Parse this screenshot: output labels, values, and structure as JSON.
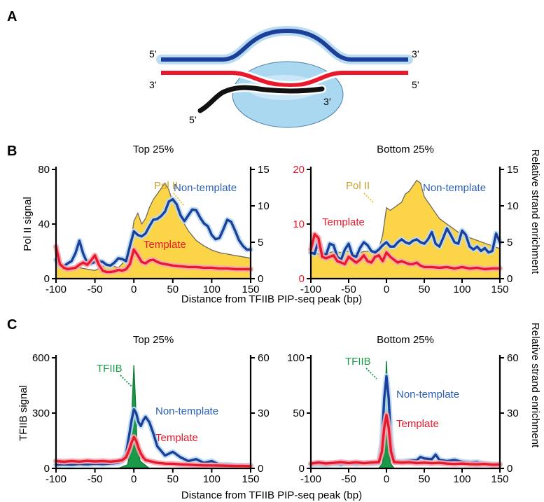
{
  "panel_letters": {
    "a": "A",
    "b": "B",
    "c": "C"
  },
  "schematic": {
    "top_left": "5’",
    "top_right": "3’",
    "bottom_left": "3’",
    "bottom_right": "5’",
    "rna_5": "5’",
    "rna_3": "3’"
  },
  "colors": {
    "non_template": "#1c3f9a",
    "template": "#e8192c",
    "pol2": "#fbd448",
    "tfiib": "#1a9a48",
    "halo": "#b9dcf2",
    "bubble": "#a9d8f0",
    "rna": "#111111"
  },
  "right_label": "Relative strand enrichment",
  "xlabel": "Distance from TFIIB PIP-seq peak (bp)",
  "chart_data": [
    {
      "type": "area",
      "panel": "B",
      "title": "Top 25%",
      "ylabel": "Pol II signal",
      "xlim": [
        -100,
        150
      ],
      "xticks": [
        "-100",
        "-50",
        "0",
        "50",
        "100",
        "150"
      ],
      "ylim_left": [
        0,
        80
      ],
      "yticks_left": [
        "0",
        "40",
        "80"
      ],
      "ylim_right": [
        0,
        15
      ],
      "yticks_right": [
        "0",
        "5",
        "10",
        "15"
      ],
      "series": [
        {
          "name": "Pol II",
          "axis": "left",
          "x": [
            -100,
            -90,
            -80,
            -70,
            -60,
            -50,
            -40,
            -30,
            -20,
            -10,
            -5,
            0,
            5,
            10,
            15,
            20,
            25,
            30,
            35,
            40,
            45,
            50,
            60,
            70,
            80,
            90,
            100,
            110,
            120,
            130,
            140,
            150
          ],
          "y": [
            10,
            8,
            7,
            8,
            7,
            6,
            9,
            10,
            8,
            14,
            22,
            42,
            48,
            40,
            44,
            52,
            58,
            62,
            66,
            70,
            65,
            56,
            45,
            35,
            28,
            24,
            21,
            19,
            18,
            17,
            16,
            15
          ]
        },
        {
          "name": "Non-template",
          "axis": "right",
          "x": [
            -100,
            -95,
            -90,
            -85,
            -80,
            -75,
            -70,
            -65,
            -60,
            -55,
            -50,
            -45,
            -40,
            -35,
            -30,
            -25,
            -20,
            -15,
            -10,
            -5,
            0,
            5,
            10,
            15,
            20,
            25,
            30,
            35,
            40,
            45,
            50,
            55,
            60,
            65,
            70,
            75,
            80,
            85,
            90,
            95,
            100,
            105,
            110,
            115,
            120,
            125,
            130,
            135,
            140,
            145,
            150
          ],
          "y": [
            2.6,
            1.8,
            1.7,
            2.1,
            2.4,
            3.5,
            5.2,
            3.4,
            2.2,
            2.1,
            2.3,
            2.4,
            2.3,
            1.9,
            1.8,
            2.2,
            2.8,
            2.7,
            2.4,
            4.5,
            6.5,
            6.0,
            5.8,
            6.2,
            7.2,
            8.1,
            8.2,
            8.6,
            9.2,
            10.6,
            10.9,
            10.2,
            8.7,
            7.9,
            8.7,
            9.5,
            9.4,
            8.4,
            7.6,
            7.2,
            6.0,
            5.4,
            5.6,
            6.8,
            8.1,
            7.8,
            6.6,
            5.3,
            4.5,
            4.0,
            4.0
          ]
        },
        {
          "name": "Template",
          "axis": "right",
          "x": [
            -100,
            -95,
            -90,
            -85,
            -80,
            -75,
            -70,
            -65,
            -60,
            -55,
            -50,
            -45,
            -40,
            -35,
            -30,
            -25,
            -20,
            -15,
            -10,
            -5,
            0,
            5,
            10,
            15,
            20,
            25,
            30,
            35,
            40,
            45,
            50,
            60,
            70,
            80,
            90,
            100,
            110,
            120,
            130,
            140,
            150
          ],
          "y": [
            4.4,
            2.0,
            1.5,
            1.3,
            1.4,
            1.5,
            1.9,
            2.2,
            1.9,
            2.5,
            3.2,
            1.9,
            1.1,
            0.9,
            0.9,
            1.0,
            1.2,
            1.1,
            1.3,
            2.0,
            4.0,
            3.2,
            2.3,
            2.1,
            2.5,
            2.6,
            2.3,
            2.1,
            2.0,
            1.9,
            1.8,
            1.7,
            1.6,
            1.6,
            1.5,
            1.5,
            1.4,
            1.4,
            1.3,
            1.3,
            1.3
          ]
        }
      ],
      "annotations": [
        {
          "text": "Pol II",
          "kind": "pol2"
        },
        {
          "text": "Non-template",
          "kind": "non_template"
        },
        {
          "text": "Template",
          "kind": "template"
        }
      ]
    },
    {
      "type": "area",
      "panel": "B",
      "title": "Bottom 25%",
      "ylabel": "",
      "xlim": [
        -100,
        150
      ],
      "xticks": [
        "-100",
        "-50",
        "0",
        "50",
        "100",
        "150"
      ],
      "ylim_left": [
        0,
        20
      ],
      "yticks_left": [
        "0",
        "10",
        "20"
      ],
      "ylim_right": [
        0,
        15
      ],
      "yticks_right": [
        "0",
        "5",
        "10",
        "15"
      ],
      "series": [
        {
          "name": "Pol II",
          "axis": "left",
          "x": [
            -100,
            -90,
            -80,
            -70,
            -60,
            -50,
            -40,
            -30,
            -20,
            -10,
            -5,
            0,
            5,
            10,
            20,
            25,
            30,
            35,
            40,
            45,
            50,
            60,
            70,
            80,
            90,
            100,
            110,
            120,
            130,
            140,
            150
          ],
          "y": [
            5,
            4.5,
            4.5,
            5,
            4.8,
            5,
            4.5,
            5,
            5,
            5.5,
            8,
            13,
            12.5,
            13,
            14,
            15.5,
            16,
            17,
            18,
            17.5,
            15,
            13,
            11,
            10,
            9,
            8,
            7.5,
            7,
            6.5,
            6,
            5.5
          ]
        },
        {
          "name": "Non-template",
          "axis": "right",
          "x": [
            -100,
            -95,
            -90,
            -85,
            -80,
            -75,
            -70,
            -65,
            -60,
            -55,
            -50,
            -45,
            -40,
            -35,
            -30,
            -25,
            -20,
            -15,
            -10,
            -5,
            0,
            5,
            10,
            15,
            20,
            25,
            30,
            35,
            40,
            45,
            50,
            55,
            60,
            65,
            70,
            75,
            80,
            85,
            90,
            95,
            100,
            105,
            110,
            115,
            120,
            125,
            130,
            135,
            140,
            145,
            150
          ],
          "y": [
            3.6,
            3.4,
            5.2,
            3.6,
            3.2,
            4.8,
            4.6,
            3.0,
            2.6,
            4.0,
            4.8,
            3.2,
            3.0,
            4.2,
            5.0,
            4.6,
            3.8,
            3.6,
            4.0,
            4.6,
            5.0,
            4.4,
            4.4,
            5.0,
            5.4,
            5.0,
            4.8,
            5.2,
            5.4,
            5.0,
            4.8,
            5.4,
            6.4,
            4.8,
            4.4,
            5.6,
            6.9,
            6.0,
            5.0,
            4.8,
            6.6,
            6.0,
            4.4,
            4.0,
            4.4,
            3.8,
            4.2,
            3.6,
            3.8,
            6.2,
            5.0
          ]
        },
        {
          "name": "Template",
          "axis": "right",
          "x": [
            -100,
            -95,
            -90,
            -85,
            -80,
            -75,
            -70,
            -65,
            -60,
            -55,
            -50,
            -45,
            -40,
            -35,
            -30,
            -25,
            -20,
            -15,
            -10,
            -5,
            0,
            5,
            10,
            15,
            20,
            25,
            30,
            35,
            40,
            45,
            50,
            60,
            70,
            80,
            90,
            100,
            110,
            120,
            130,
            140,
            150
          ],
          "y": [
            4.0,
            6.1,
            5.6,
            3.0,
            2.8,
            3.0,
            3.2,
            2.4,
            2.2,
            2.0,
            3.0,
            2.6,
            2.2,
            2.6,
            3.2,
            2.4,
            2.2,
            3.0,
            3.2,
            2.4,
            3.6,
            3.0,
            2.6,
            2.2,
            2.4,
            2.2,
            2.0,
            2.0,
            2.2,
            1.8,
            1.6,
            1.6,
            1.5,
            1.6,
            1.4,
            1.6,
            1.4,
            1.5,
            1.3,
            1.4,
            1.4
          ]
        }
      ],
      "annotations": [
        {
          "text": "Pol II",
          "kind": "pol2"
        },
        {
          "text": "Non-template",
          "kind": "non_template"
        },
        {
          "text": "Template",
          "kind": "template"
        }
      ]
    },
    {
      "type": "area",
      "panel": "C",
      "title": "Top 25%",
      "ylabel": "TFIIB signal",
      "xlim": [
        -100,
        150
      ],
      "xticks": [
        "-100",
        "-50",
        "0",
        "50",
        "100",
        "150"
      ],
      "ylim_left": [
        0,
        600
      ],
      "yticks_left": [
        "0",
        "300",
        "600"
      ],
      "ylim_right": [
        0,
        60
      ],
      "yticks_right": [
        "0",
        "30",
        "60"
      ],
      "series": [
        {
          "name": "TFIIB",
          "axis": "left",
          "x": [
            -100,
            -20,
            -8,
            -4,
            -2,
            0,
            2,
            4,
            8,
            20,
            150
          ],
          "y": [
            0,
            0,
            20,
            120,
            360,
            560,
            380,
            150,
            40,
            0,
            0
          ]
        },
        {
          "name": "Non-template",
          "axis": "right",
          "x": [
            -100,
            -90,
            -80,
            -70,
            -60,
            -50,
            -40,
            -30,
            -20,
            -15,
            -10,
            -6,
            -3,
            0,
            3,
            6,
            9,
            12,
            15,
            20,
            25,
            30,
            40,
            50,
            60,
            70,
            80,
            90,
            100,
            110,
            120,
            130,
            140,
            150
          ],
          "y": [
            2,
            2.2,
            2,
            2.4,
            2.2,
            2.5,
            2.3,
            2.6,
            3,
            4,
            8,
            18,
            26,
            32,
            30,
            25,
            23,
            26,
            28,
            25,
            19,
            12,
            7,
            9,
            6,
            4,
            5,
            3,
            4,
            2,
            2,
            1.6,
            1.5,
            1.5
          ]
        },
        {
          "name": "Template",
          "axis": "right",
          "x": [
            -100,
            -90,
            -80,
            -70,
            -60,
            -50,
            -40,
            -30,
            -20,
            -15,
            -10,
            -6,
            -3,
            0,
            3,
            6,
            9,
            12,
            15,
            20,
            25,
            30,
            40,
            50,
            60,
            70,
            80,
            90,
            100,
            110,
            120,
            130,
            140,
            150
          ],
          "y": [
            4,
            3.6,
            4,
            3.7,
            4.1,
            3.8,
            4.0,
            3.7,
            4.1,
            4.5,
            6,
            10,
            14,
            17,
            15,
            11,
            8,
            6,
            4.5,
            4,
            3.5,
            3,
            2.6,
            2.5,
            2.2,
            2,
            1.8,
            1.6,
            1.6,
            1.5,
            1.4,
            1.3,
            1.3,
            1.2
          ]
        }
      ],
      "annotations": [
        {
          "text": "TFIIB",
          "kind": "tfiib"
        },
        {
          "text": "Non-template",
          "kind": "non_template"
        },
        {
          "text": "Template",
          "kind": "template"
        }
      ]
    },
    {
      "type": "area",
      "panel": "C",
      "title": "Bottom 25%",
      "ylabel": "",
      "xlim": [
        -100,
        150
      ],
      "xticks": [
        "-100",
        "-50",
        "0",
        "50",
        "100",
        "150"
      ],
      "ylim_left": [
        0,
        100
      ],
      "yticks_left": [
        "0",
        "50",
        "100"
      ],
      "ylim_right": [
        0,
        60
      ],
      "yticks_right": [
        "0",
        "30",
        "60"
      ],
      "series": [
        {
          "name": "TFIIB",
          "axis": "left",
          "x": [
            -100,
            -10,
            -5,
            -3,
            -1,
            0,
            1,
            3,
            5,
            10,
            150
          ],
          "y": [
            0,
            0,
            5,
            30,
            80,
            97,
            80,
            30,
            5,
            0,
            0
          ]
        },
        {
          "name": "Non-template",
          "axis": "right",
          "x": [
            -100,
            -90,
            -80,
            -70,
            -60,
            -50,
            -40,
            -30,
            -20,
            -10,
            -6,
            -3,
            0,
            3,
            6,
            10,
            20,
            30,
            40,
            45,
            50,
            60,
            65,
            70,
            80,
            90,
            100,
            110,
            120,
            130,
            140,
            150
          ],
          "y": [
            2,
            2.4,
            2.1,
            2.6,
            2.3,
            2.8,
            2.4,
            2.9,
            2.7,
            3,
            14,
            38,
            50,
            38,
            14,
            4,
            3.6,
            4.2,
            4.4,
            6.2,
            5.4,
            5,
            7.5,
            4.6,
            4,
            4.6,
            3.6,
            3.2,
            3.4,
            2.6,
            2.2,
            2.2
          ]
        },
        {
          "name": "Template",
          "axis": "right",
          "x": [
            -100,
            -90,
            -80,
            -70,
            -60,
            -50,
            -40,
            -30,
            -20,
            -10,
            -6,
            -3,
            0,
            3,
            6,
            10,
            20,
            30,
            40,
            50,
            60,
            70,
            80,
            90,
            100,
            110,
            120,
            130,
            140,
            150
          ],
          "y": [
            2.6,
            3.2,
            2.7,
            3.0,
            3.4,
            2.9,
            3.3,
            2.8,
            3.2,
            3.4,
            9,
            22,
            29,
            22,
            9,
            3.4,
            3.1,
            3.3,
            2.9,
            3.1,
            2.8,
            3.0,
            2.6,
            2.4,
            2.6,
            2.3,
            2.2,
            2.4,
            2.0,
            2.1
          ]
        }
      ],
      "annotations": [
        {
          "text": "TFIIB",
          "kind": "tfiib"
        },
        {
          "text": "Non-template",
          "kind": "non_template"
        },
        {
          "text": "Template",
          "kind": "template"
        }
      ]
    }
  ]
}
